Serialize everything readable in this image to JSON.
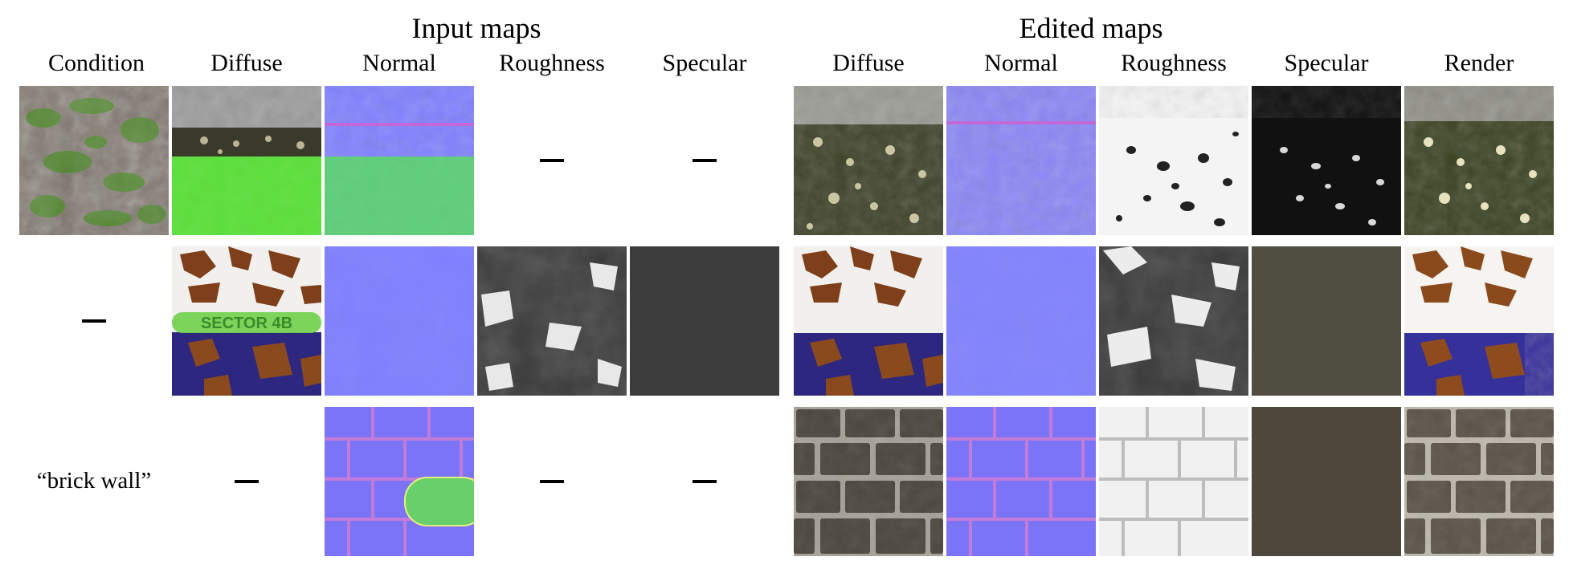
{
  "headers": {
    "input_group": "Input maps",
    "edited_group": "Edited maps",
    "columns": [
      "Condition",
      "Diffuse",
      "Normal",
      "Roughness",
      "Specular",
      "Diffuse",
      "Normal",
      "Roughness",
      "Specular",
      "Render"
    ]
  },
  "rows": [
    {
      "condition": {
        "type": "image",
        "kind": "moss-ground"
      },
      "inputs": {
        "diffuse": {
          "type": "image",
          "kind": "pavement-diffuse-masked"
        },
        "normal": {
          "type": "image",
          "kind": "pavement-normal-masked"
        },
        "roughness": {
          "type": "dash"
        },
        "specular": {
          "type": "dash"
        }
      },
      "edited": {
        "diffuse": "pavement-diffuse",
        "normal": "pavement-normal",
        "roughness": "pavement-roughness",
        "specular": "pavement-specular",
        "render": "pavement-render"
      }
    },
    {
      "condition": {
        "type": "dash"
      },
      "inputs": {
        "diffuse": {
          "type": "image",
          "kind": "rust-diffuse-masked",
          "overlay_text": "SECTOR 4B"
        },
        "normal": {
          "type": "image",
          "kind": "flat-normal"
        },
        "roughness": {
          "type": "image",
          "kind": "rust-roughness"
        },
        "specular": {
          "type": "image",
          "kind": "dark-gray-specular"
        }
      },
      "edited": {
        "diffuse": "rust-diffuse",
        "normal": "flat-normal",
        "roughness": "rust-roughness",
        "specular": "olive-specular",
        "render": "rust-render"
      }
    },
    {
      "condition": {
        "type": "text",
        "text": "“brick wall”"
      },
      "inputs": {
        "diffuse": {
          "type": "dash"
        },
        "normal": {
          "type": "image",
          "kind": "brick-normal-masked"
        },
        "roughness": {
          "type": "dash"
        },
        "specular": {
          "type": "dash"
        }
      },
      "edited": {
        "diffuse": "brick-diffuse",
        "normal": "brick-normal",
        "roughness": "brick-roughness",
        "specular": "brown-specular",
        "render": "brick-render"
      }
    }
  ],
  "colors": {
    "normal_base": "#8080ff",
    "mask_green": "#5be03a",
    "rust": "#8a4a1e",
    "paint_blue": "#2c2580",
    "specular_dark": "#3c3c3c",
    "specular_olive": "#4f4e41",
    "specular_brown": "#4d473c"
  }
}
